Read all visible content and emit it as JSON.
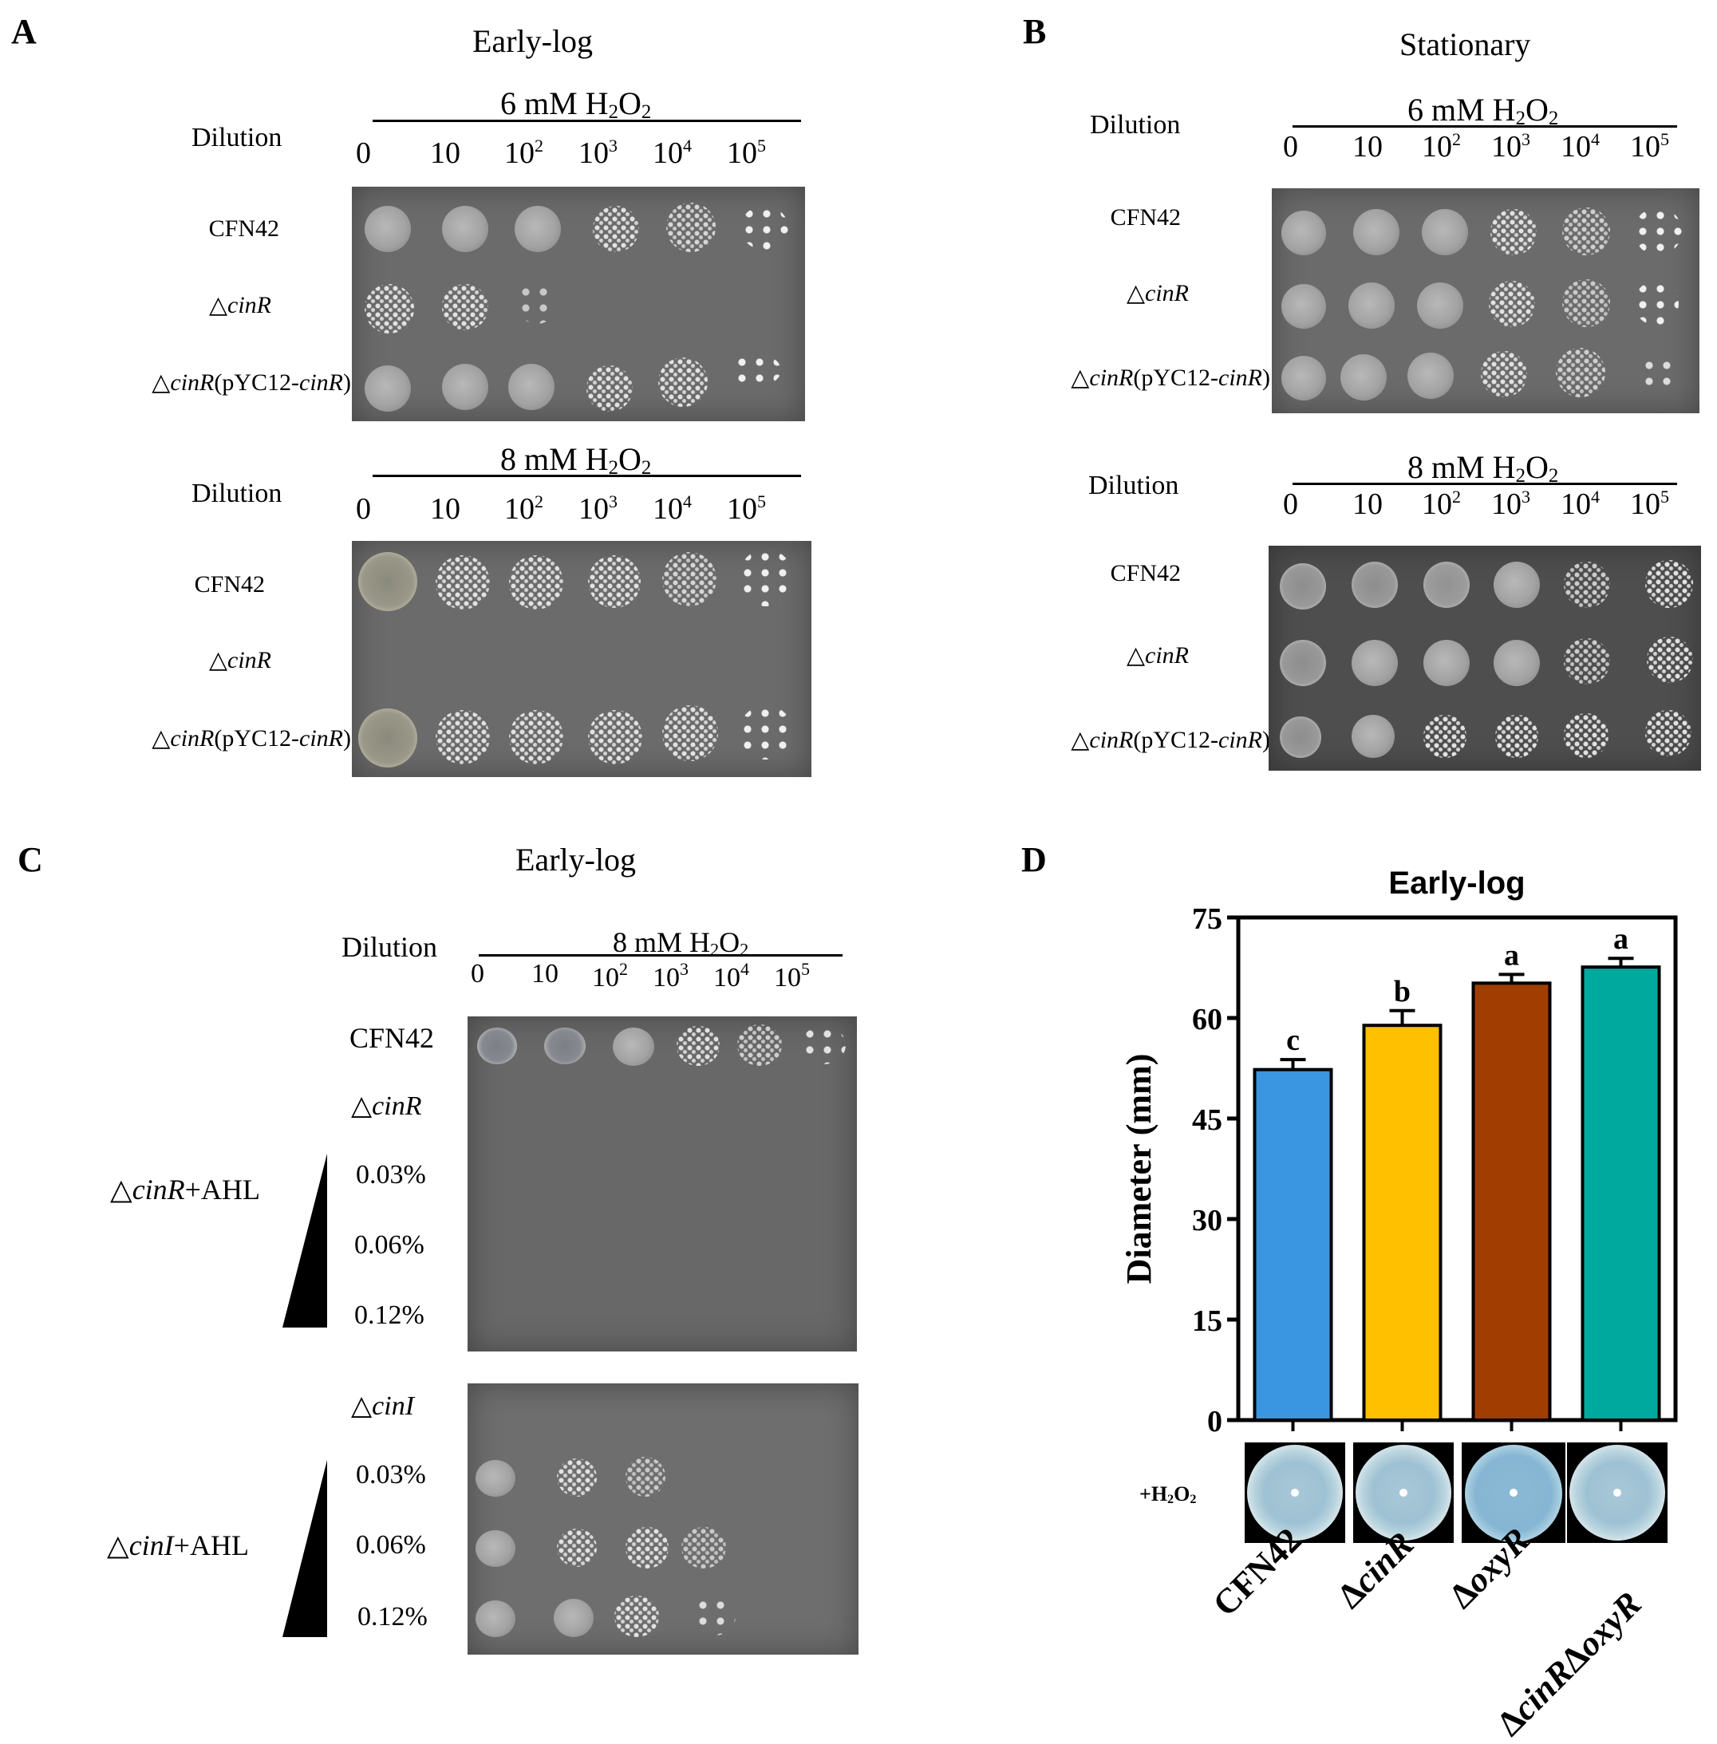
{
  "panels": {
    "A": {
      "letter": "A",
      "title": "Early-log",
      "top": {
        "condition": "6 mM H2O2",
        "dilution_label": "Dilution",
        "dilutions": [
          "0",
          "10",
          "10^2",
          "10^3",
          "10^4",
          "10^5"
        ],
        "strains": [
          "CFN42",
          "△cinR",
          "△cinR(pYC12-cinR)"
        ]
      },
      "bottom": {
        "condition": "8 mM H2O2",
        "dilution_label": "Dilution",
        "dilutions": [
          "0",
          "10",
          "10^2",
          "10^3",
          "10^4",
          "10^5"
        ],
        "strains": [
          "CFN42",
          "△cinR",
          "△cinR(pYC12-cinR)"
        ]
      }
    },
    "B": {
      "letter": "B",
      "title": "Stationary",
      "top": {
        "condition": "6 mM H2O2",
        "dilution_label": "Dilution",
        "dilutions": [
          "0",
          "10",
          "10^2",
          "10^3",
          "10^4",
          "10^5"
        ],
        "strains": [
          "CFN42",
          "△cinR",
          "△cinR(pYC12-cinR)"
        ]
      },
      "bottom": {
        "condition": "8 mM H2O2",
        "dilution_label": "Dilution",
        "dilutions": [
          "0",
          "10",
          "10^2",
          "10^3",
          "10^4",
          "10^5"
        ],
        "strains": [
          "CFN42",
          "△cinR",
          "△cinR(pYC12-cinR)"
        ]
      }
    },
    "C": {
      "letter": "C",
      "title": "Early-log",
      "condition": "8 mM H2O2",
      "dilution_label": "Dilution",
      "dilutions": [
        "0",
        "10",
        "10^2",
        "10^3",
        "10^4",
        "10^5"
      ],
      "plate1_rows": [
        "CFN42",
        "△cinR",
        "0.03%",
        "0.06%",
        "0.12%"
      ],
      "plate1_group": "△cinR+AHL",
      "plate2_rows": [
        "△cinI",
        "0.03%",
        "0.06%",
        "0.12%"
      ],
      "plate2_group": "△cinI+AHL"
    },
    "D": {
      "letter": "D",
      "condition_label": "+H2O2"
    }
  },
  "chart_data": {
    "type": "bar",
    "title": "Early-log",
    "ylabel": "Diameter (mm)",
    "xlabel": "",
    "ylim": [
      0,
      75
    ],
    "yticks": [
      0,
      15,
      30,
      45,
      60,
      75
    ],
    "categories": [
      "CFN42",
      "ΔcinR",
      "ΔoxyR",
      "ΔcinRΔoxyR"
    ],
    "values": [
      52.3,
      58.9,
      65.2,
      67.6
    ],
    "errors": [
      1.5,
      2.2,
      1.3,
      1.3
    ],
    "significance": [
      "c",
      "b",
      "a",
      "a"
    ],
    "colors": [
      "#3a96e0",
      "#ffc000",
      "#a23d00",
      "#00a99d"
    ]
  }
}
